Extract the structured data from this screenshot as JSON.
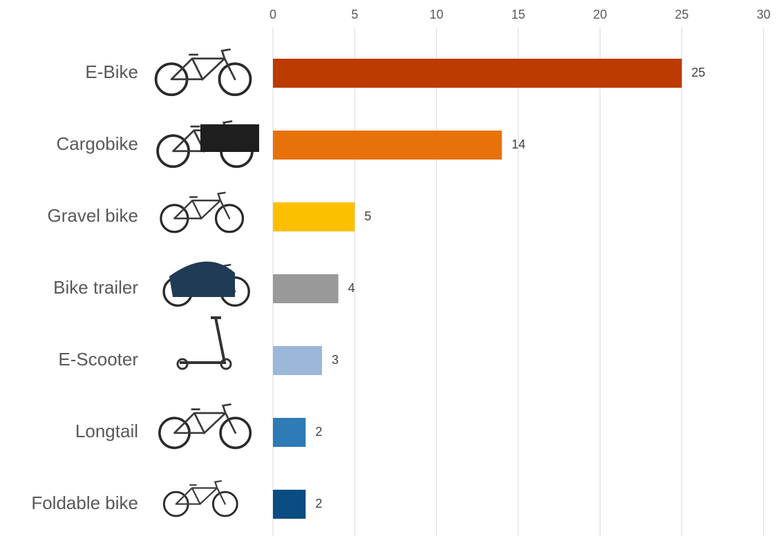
{
  "chart_data": {
    "type": "bar",
    "orientation": "horizontal",
    "categories": [
      "E-Bike",
      "Cargobike",
      "Gravel bike",
      "Bike trailer",
      "E-Scooter",
      "Longtail",
      "Foldable bike"
    ],
    "values": [
      25,
      14,
      5,
      4,
      3,
      2,
      2
    ],
    "colors": [
      "#bb3b00",
      "#e8720a",
      "#fdc000",
      "#999999",
      "#9bb7da",
      "#2e7bb6",
      "#0b4c82"
    ],
    "xlim": [
      0,
      30
    ],
    "xticks": [
      0,
      5,
      10,
      15,
      20,
      25,
      30
    ],
    "grid": true
  }
}
